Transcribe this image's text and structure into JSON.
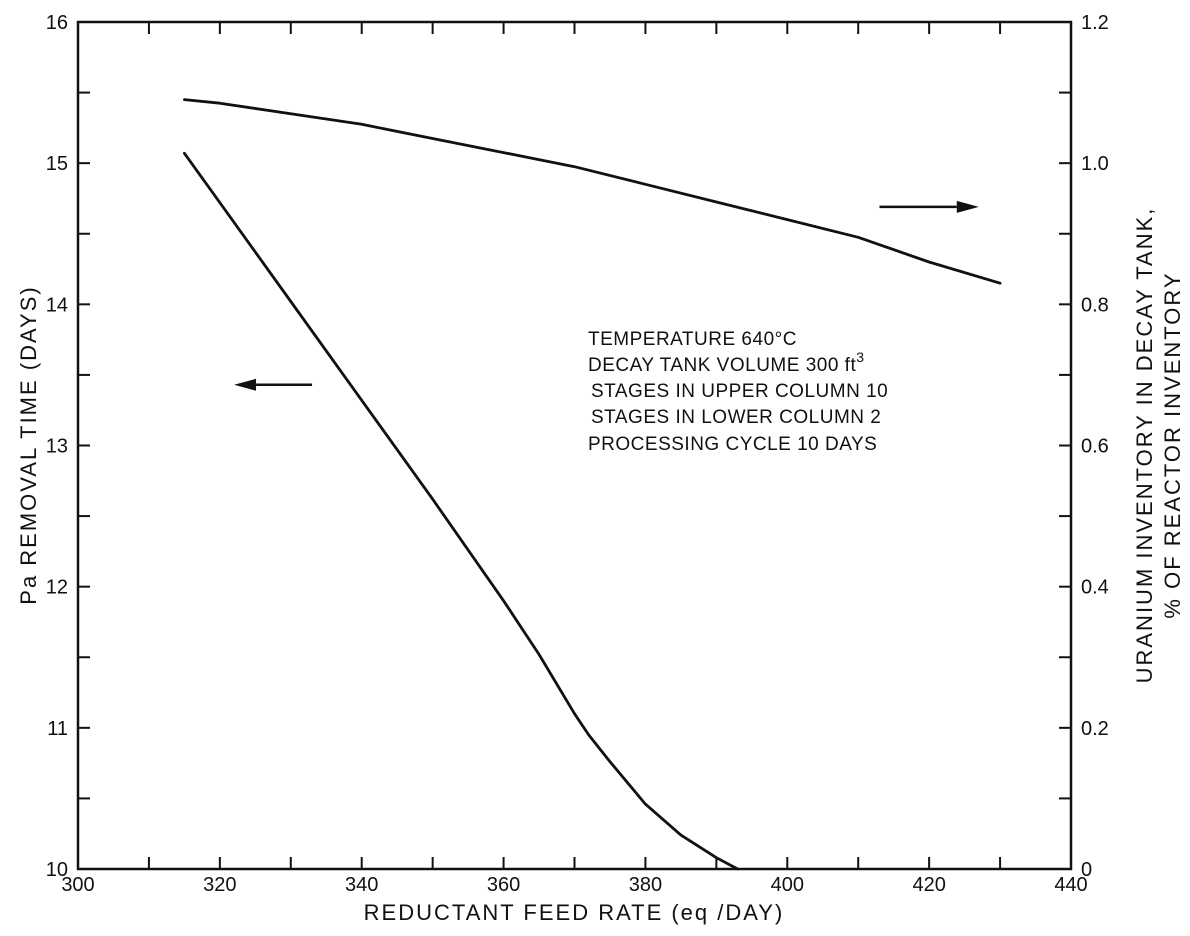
{
  "chart_data": {
    "type": "line",
    "xlabel": "REDUCTANT FEED RATE (eq /DAY)",
    "xlim": [
      300,
      440
    ],
    "x_ticks": [
      300,
      320,
      340,
      360,
      380,
      400,
      420,
      440
    ],
    "ylabel_left": "Pa REMOVAL TIME (DAYS)",
    "ylim_left": [
      10,
      16
    ],
    "y_ticks_left": [
      10,
      11,
      12,
      13,
      14,
      15,
      16
    ],
    "ylabel_right_lines": [
      "URANIUM INVENTORY IN DECAY TANK,",
      "% OF REACTOR INVENTORY"
    ],
    "ylim_right": [
      0,
      1.2
    ],
    "y_ticks_right": [
      "0",
      "0.2",
      "0.4",
      "0.6",
      "0.8",
      "1.0",
      "1.2"
    ],
    "grid": false,
    "series": [
      {
        "axis": "left",
        "x": [
          315,
          320,
          330,
          340,
          350,
          360,
          365,
          370,
          372,
          375,
          380,
          385,
          390,
          393
        ],
        "y": [
          15.07,
          14.72,
          14.02,
          13.32,
          12.62,
          11.9,
          11.52,
          11.1,
          10.95,
          10.76,
          10.46,
          10.24,
          10.08,
          10.0
        ]
      },
      {
        "axis": "right",
        "x": [
          315,
          320,
          330,
          340,
          350,
          360,
          370,
          380,
          390,
          400,
          410,
          420,
          430
        ],
        "y": [
          1.09,
          1.085,
          1.07,
          1.055,
          1.035,
          1.015,
          0.995,
          0.97,
          0.945,
          0.92,
          0.895,
          0.86,
          0.83
        ]
      }
    ],
    "annotation_lines": [
      "TEMPERATURE 640°C",
      "DECAY TANK VOLUME 300 ft",
      "STAGES IN UPPER COLUMN 10",
      "STAGES IN LOWER COLUMN 2",
      "PROCESSING CYCLE 10 DAYS"
    ],
    "annotation_superscript": "3",
    "arrows": [
      {
        "points_to": "left",
        "x_from": 333,
        "x_to": 322,
        "y": 13.43
      },
      {
        "points_to": "right",
        "x_from": 413,
        "x_to": 427,
        "y": 14.69
      }
    ]
  }
}
